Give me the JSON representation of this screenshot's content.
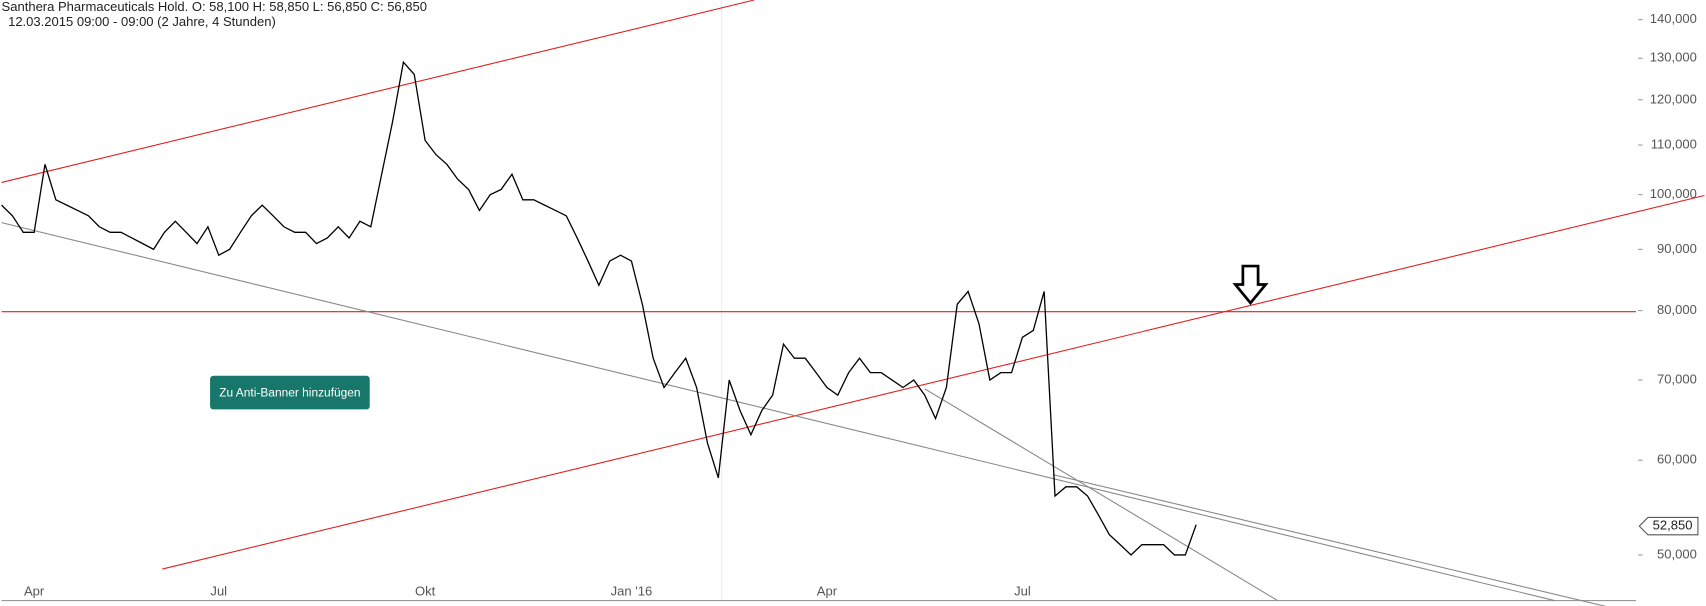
{
  "chart_data": {
    "type": "line",
    "title": "Santhera Pharmaceuticals Hold.  O: 58,100  H: 58,850  L: 56,850  C: 56,850",
    "subtitle": "12.03.2015 09:00 - 09:00 (2 Jahre, 4 Stunden)",
    "button": "Zu Anti-Banner hinzufügen",
    "categories": [
      null,
      null,
      null,
      "Apr",
      null,
      null,
      null,
      null,
      null,
      null,
      null,
      null,
      null,
      null,
      null,
      null,
      null,
      null,
      null,
      null,
      "Jul",
      null,
      null,
      null,
      null,
      null,
      null,
      null,
      null,
      null,
      null,
      null,
      null,
      null,
      null,
      null,
      null,
      null,
      null,
      "Okt",
      null,
      null,
      null,
      null,
      null,
      null,
      null,
      null,
      null,
      null,
      null,
      null,
      null,
      null,
      null,
      null,
      null,
      null,
      "Jan '16",
      null,
      null,
      null,
      null,
      null,
      null,
      null,
      null,
      null,
      null,
      null,
      null,
      null,
      null,
      null,
      null,
      null,
      "Apr",
      null,
      null,
      null,
      null,
      null,
      null,
      null,
      null,
      null,
      null,
      null,
      null,
      null,
      null,
      null,
      null,
      null,
      "Jul",
      null,
      null,
      null,
      null,
      null,
      null,
      null,
      null,
      null,
      null,
      null,
      null,
      null,
      null,
      null,
      null
    ],
    "series": [
      {
        "color": "#000000",
        "values": [
          98,
          96,
          93,
          93,
          106,
          99,
          98,
          97,
          96,
          94,
          93,
          93,
          92,
          91,
          90,
          93,
          95,
          93,
          91,
          94,
          89,
          90,
          93,
          96,
          98,
          96,
          94,
          93,
          93,
          91,
          92,
          94,
          92,
          95,
          94,
          104,
          115,
          129,
          126,
          111,
          108,
          106,
          103,
          101,
          97,
          100,
          101,
          104,
          99,
          99,
          98,
          97,
          96,
          92,
          88,
          84,
          88,
          89,
          88,
          81,
          73,
          69,
          71,
          73,
          69,
          62,
          58,
          70,
          66,
          63,
          66,
          68,
          75,
          73,
          73,
          71,
          69,
          68,
          71,
          73,
          71,
          71,
          70,
          69,
          70,
          68,
          65,
          69,
          81,
          83,
          78,
          70,
          71,
          71,
          76,
          77,
          83,
          56,
          57,
          57,
          56,
          54,
          52,
          51,
          50,
          51,
          51,
          51,
          50,
          50,
          53
        ]
      }
    ],
    "last_price": {
      "value": 52.85,
      "label": "52,850"
    },
    "log_scale": true,
    "ylim": [
      45.8,
      145.4
    ],
    "yticks": [
      {
        "value": 50,
        "label": "50,000"
      },
      {
        "value": 60,
        "label": "60,000"
      },
      {
        "value": 70,
        "label": "70,000"
      },
      {
        "value": 80,
        "label": "80,000"
      },
      {
        "value": 90,
        "label": "90,000"
      },
      {
        "value": 100,
        "label": "100,000"
      },
      {
        "value": 110,
        "label": "110,000"
      },
      {
        "value": 120,
        "label": "120,000"
      },
      {
        "value": 130,
        "label": "130,000"
      },
      {
        "value": 140,
        "label": "140,000"
      }
    ]
  }
}
